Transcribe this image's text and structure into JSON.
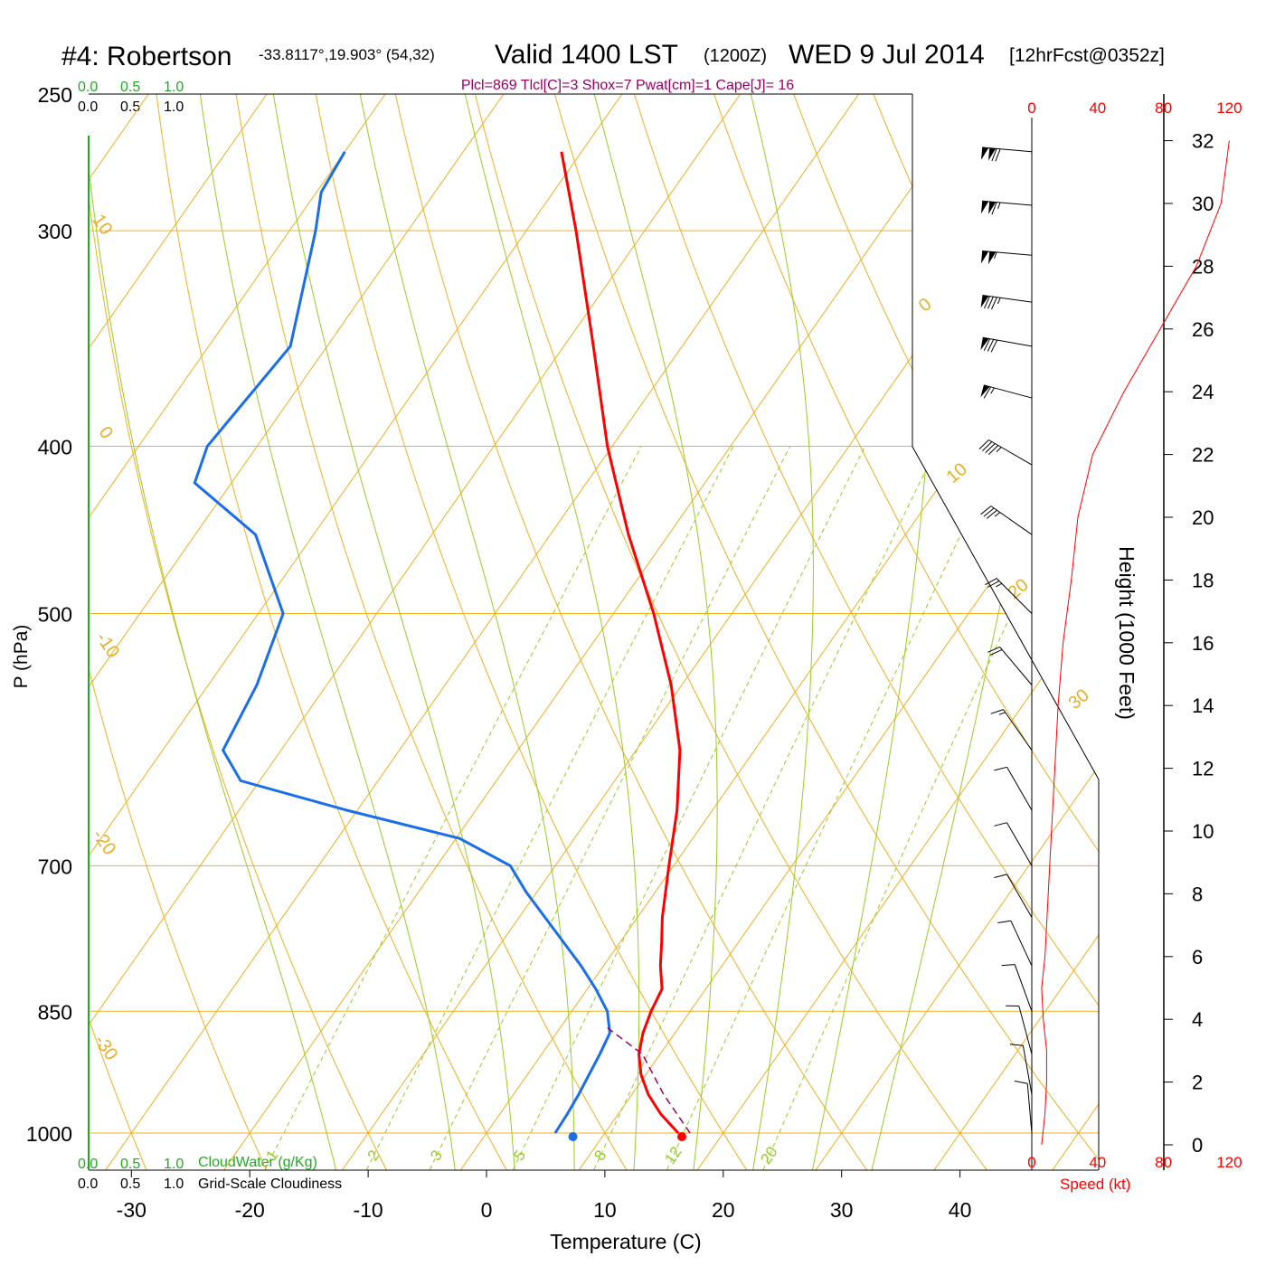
{
  "title": {
    "station": "#4: Robertson",
    "coords": "-33.8117°,19.903° (54,32)",
    "valid": "Valid 1400 LST",
    "zulu": "(1200Z)",
    "date": "WED 9 Jul 2014",
    "forecast": "[12hrFcst@0352z]"
  },
  "params_line": "Plcl=869 Tlcl[C]=3 Shox=7 Pwat[cm]=1 Cape[J]= 16",
  "cloud_scale": {
    "green_ticks": [
      "0.0",
      "0.5",
      "1.0"
    ],
    "black_ticks": [
      "0.0",
      "0.5",
      "1.0"
    ],
    "cloudwater_label": "CloudWater (g/Kg)",
    "cloudiness_label": "Grid-Scale Cloudiness"
  },
  "speed_axis": {
    "ticks": [
      "0",
      "40",
      "80",
      "120"
    ],
    "label": "Speed (kt)"
  },
  "colors": {
    "temperature": "#ff0000",
    "dewpoint": "#1a6fe8",
    "isotherm": "#f0b020",
    "moist_adiabat": "#99cc22",
    "mixing_ratio": "#99cc22",
    "params": "#990066",
    "cloudwater": "#22aa22"
  },
  "chart_data": {
    "type": "line",
    "chart_kind": "skew-T log-P sounding",
    "xlabel": "Temperature (C)",
    "ylabel": "P (hPa)",
    "y2label": "Height (1000 Feet)",
    "x_ticks": [
      -30,
      -20,
      -10,
      0,
      10,
      20,
      30,
      40
    ],
    "p_ticks": [
      250,
      300,
      400,
      500,
      700,
      850,
      1000
    ],
    "height_ticks_kft": [
      0,
      2,
      4,
      6,
      8,
      10,
      12,
      14,
      16,
      18,
      20,
      22,
      24,
      26,
      28,
      30,
      32
    ],
    "pressure_range_hpa": [
      250,
      1050
    ],
    "temperature_range_c": [
      -34,
      46
    ],
    "isotherm_labels": [
      "10",
      "0",
      "-10",
      "-20",
      "-30",
      "0",
      "10",
      "20",
      "30"
    ],
    "mixing_ratio_labels": [
      "1",
      "2",
      "3",
      "5",
      "8",
      "12",
      "20"
    ],
    "temperature_profile": [
      {
        "p": 1000,
        "t": 16.2
      },
      {
        "p": 975,
        "t": 13.6
      },
      {
        "p": 950,
        "t": 11.4
      },
      {
        "p": 925,
        "t": 9.6
      },
      {
        "p": 900,
        "t": 8.2
      },
      {
        "p": 875,
        "t": 7.3
      },
      {
        "p": 850,
        "t": 6.7
      },
      {
        "p": 825,
        "t": 6.3
      },
      {
        "p": 800,
        "t": 4.8
      },
      {
        "p": 775,
        "t": 3.5
      },
      {
        "p": 750,
        "t": 2.1
      },
      {
        "p": 700,
        "t": -0.4
      },
      {
        "p": 650,
        "t": -3.0
      },
      {
        "p": 600,
        "t": -6.3
      },
      {
        "p": 550,
        "t": -10.9
      },
      {
        "p": 500,
        "t": -16.6
      },
      {
        "p": 450,
        "t": -23.4
      },
      {
        "p": 400,
        "t": -30.4
      },
      {
        "p": 350,
        "t": -37.5
      },
      {
        "p": 300,
        "t": -45.8
      },
      {
        "p": 270,
        "t": -51.7
      }
    ],
    "dewpoint_profile": [
      {
        "p": 1000,
        "td": 5.8
      },
      {
        "p": 975,
        "td": 5.7
      },
      {
        "p": 950,
        "td": 5.5
      },
      {
        "p": 900,
        "td": 4.9
      },
      {
        "p": 875,
        "td": 4.5
      },
      {
        "p": 850,
        "td": 3.0
      },
      {
        "p": 825,
        "td": 0.7
      },
      {
        "p": 800,
        "td": -1.9
      },
      {
        "p": 750,
        "td": -7.8
      },
      {
        "p": 725,
        "td": -10.9
      },
      {
        "p": 700,
        "td": -13.8
      },
      {
        "p": 675,
        "td": -19.7
      },
      {
        "p": 650,
        "td": -30.9
      },
      {
        "p": 625,
        "td": -41.6
      },
      {
        "p": 600,
        "td": -44.9
      },
      {
        "p": 550,
        "td": -45.9
      },
      {
        "p": 500,
        "td": -47.9
      },
      {
        "p": 450,
        "td": -54.9
      },
      {
        "p": 420,
        "td": -63.1
      },
      {
        "p": 400,
        "td": -64.2
      },
      {
        "p": 350,
        "td": -63.1
      },
      {
        "p": 300,
        "td": -67.8
      },
      {
        "p": 285,
        "td": -69.6
      },
      {
        "p": 270,
        "td": -70.0
      }
    ],
    "parcel_path": [
      {
        "p": 1000,
        "t": 16.2
      },
      {
        "p": 950,
        "t": 11.7
      },
      {
        "p": 900,
        "t": 7.5
      },
      {
        "p": 869,
        "t": 3.0
      }
    ],
    "surface_temperature_c": 16.5,
    "surface_dewpoint_c": 7.3,
    "wind_speed_profile": [
      {
        "h_kft": 0,
        "kt": 6
      },
      {
        "h_kft": 1,
        "kt": 8
      },
      {
        "h_kft": 2,
        "kt": 9
      },
      {
        "h_kft": 3,
        "kt": 9
      },
      {
        "h_kft": 4,
        "kt": 7
      },
      {
        "h_kft": 5,
        "kt": 6
      },
      {
        "h_kft": 6,
        "kt": 8
      },
      {
        "h_kft": 8,
        "kt": 10
      },
      {
        "h_kft": 10,
        "kt": 12
      },
      {
        "h_kft": 12,
        "kt": 14
      },
      {
        "h_kft": 14,
        "kt": 16
      },
      {
        "h_kft": 16,
        "kt": 19
      },
      {
        "h_kft": 18,
        "kt": 24
      },
      {
        "h_kft": 20,
        "kt": 28
      },
      {
        "h_kft": 22,
        "kt": 37
      },
      {
        "h_kft": 24,
        "kt": 56
      },
      {
        "h_kft": 26,
        "kt": 78
      },
      {
        "h_kft": 28,
        "kt": 100
      },
      {
        "h_kft": 30,
        "kt": 115
      },
      {
        "h_kft": 32,
        "kt": 120
      }
    ],
    "wind_barbs": [
      {
        "p": 270,
        "dir": 275,
        "kt": 120
      },
      {
        "p": 290,
        "dir": 275,
        "kt": 115
      },
      {
        "p": 310,
        "dir": 275,
        "kt": 105
      },
      {
        "p": 330,
        "dir": 278,
        "kt": 85
      },
      {
        "p": 350,
        "dir": 280,
        "kt": 80
      },
      {
        "p": 375,
        "dir": 285,
        "kt": 65
      },
      {
        "p": 410,
        "dir": 300,
        "kt": 45
      },
      {
        "p": 450,
        "dir": 305,
        "kt": 35
      },
      {
        "p": 500,
        "dir": 315,
        "kt": 25
      },
      {
        "p": 550,
        "dir": 320,
        "kt": 20
      },
      {
        "p": 600,
        "dir": 325,
        "kt": 15
      },
      {
        "p": 650,
        "dir": 330,
        "kt": 12
      },
      {
        "p": 700,
        "dir": 330,
        "kt": 10
      },
      {
        "p": 750,
        "dir": 330,
        "kt": 10
      },
      {
        "p": 800,
        "dir": 335,
        "kt": 10
      },
      {
        "p": 850,
        "dir": 340,
        "kt": 10
      },
      {
        "p": 900,
        "dir": 345,
        "kt": 10
      },
      {
        "p": 950,
        "dir": 350,
        "kt": 10
      },
      {
        "p": 1000,
        "dir": 355,
        "kt": 10
      }
    ]
  }
}
